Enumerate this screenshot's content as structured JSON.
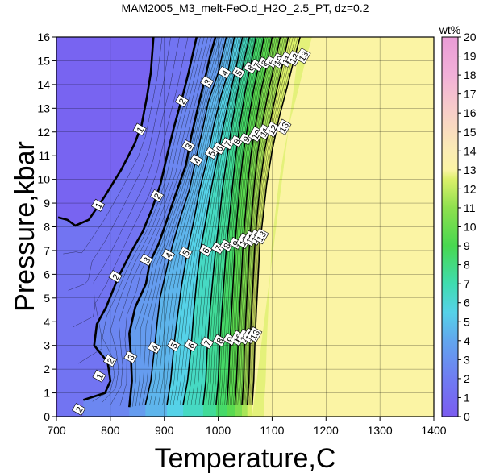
{
  "chart_data": {
    "type": "heatmap",
    "title": "MAM2005_M3_melt-FeO.d_H2O_2.5_PT, dz=0.2",
    "xlabel": "Temperature,C",
    "ylabel": "Pressure,kbar",
    "xlim": [
      700,
      1400
    ],
    "ylim": [
      0,
      16
    ],
    "x_ticks": [
      700,
      800,
      900,
      1000,
      1100,
      1200,
      1300,
      1400
    ],
    "y_ticks": [
      0,
      1,
      2,
      3,
      4,
      5,
      6,
      7,
      8,
      9,
      10,
      11,
      12,
      13,
      14,
      15,
      16
    ],
    "grid": true,
    "colorbar": {
      "label": "wt%",
      "min": 0,
      "max": 20,
      "ticks": [
        0,
        1,
        2,
        3,
        4,
        5,
        6,
        7,
        8,
        9,
        10,
        11,
        12,
        13,
        14,
        15,
        16,
        17,
        18,
        19,
        20
      ],
      "stops": [
        {
          "value": 0,
          "color": "#7b5cf0"
        },
        {
          "value": 2,
          "color": "#6f7cf2"
        },
        {
          "value": 4,
          "color": "#62a6ee"
        },
        {
          "value": 5.5,
          "color": "#55d2e8"
        },
        {
          "value": 7,
          "color": "#3fdcb0"
        },
        {
          "value": 9,
          "color": "#48d850"
        },
        {
          "value": 11,
          "color": "#8ee04e"
        },
        {
          "value": 12.5,
          "color": "#dbf06a"
        },
        {
          "value": 13,
          "color": "#fbf4a4"
        },
        {
          "value": 14,
          "color": "#fbecb4"
        },
        {
          "value": 16,
          "color": "#f8cfc8"
        },
        {
          "value": 18,
          "color": "#f2b0d8"
        },
        {
          "value": 20,
          "color": "#e99cd6"
        }
      ]
    },
    "background_field_color": "#fbf4a4",
    "isolines": [
      {
        "level": 1,
        "points": [
          [
            703,
            8.4
          ],
          [
            720,
            8.3
          ],
          [
            735,
            8.05
          ],
          [
            760,
            8.3
          ],
          [
            790,
            9.3
          ],
          [
            820,
            10.4
          ],
          [
            845,
            11.5
          ],
          [
            858,
            12.3
          ],
          [
            868,
            13.5
          ],
          [
            875,
            14.5
          ],
          [
            880,
            16
          ]
        ]
      },
      {
        "level": 2,
        "points": [
          [
            750,
            0.7
          ],
          [
            790,
            1.0
          ],
          [
            800,
            1.5
          ],
          [
            795,
            2.3
          ],
          [
            770,
            3.0
          ],
          [
            775,
            3.9
          ],
          [
            792,
            4.6
          ],
          [
            815,
            5.9
          ],
          [
            840,
            7.0
          ],
          [
            860,
            7.8
          ],
          [
            878,
            8.8
          ],
          [
            893,
            9.8
          ],
          [
            905,
            11
          ],
          [
            918,
            12.2
          ],
          [
            935,
            13.6
          ],
          [
            945,
            14.5
          ],
          [
            960,
            16
          ]
        ]
      },
      {
        "level": 3,
        "points": [
          [
            835,
            0.4
          ],
          [
            840,
            1.5
          ],
          [
            838,
            2.6
          ],
          [
            835,
            3.5
          ],
          [
            846,
            4.6
          ],
          [
            866,
            5.6
          ],
          [
            873,
            6.5
          ],
          [
            890,
            7.3
          ],
          [
            905,
            8.3
          ],
          [
            920,
            9.3
          ],
          [
            940,
            10.6
          ],
          [
            950,
            11.8
          ],
          [
            963,
            13.1
          ],
          [
            975,
            14.2
          ],
          [
            985,
            15.2
          ],
          [
            995,
            16
          ]
        ]
      },
      {
        "level": 4,
        "points": [
          [
            865,
            0.5
          ],
          [
            875,
            1.5
          ],
          [
            882,
            2.9
          ],
          [
            887,
            4.0
          ],
          [
            892,
            5.0
          ],
          [
            905,
            6.3
          ],
          [
            915,
            7.2
          ],
          [
            930,
            8.4
          ],
          [
            947,
            9.6
          ],
          [
            958,
            10.8
          ],
          [
            970,
            12
          ],
          [
            982,
            13.3
          ],
          [
            1000,
            14.5
          ],
          [
            1015,
            16
          ]
        ]
      },
      {
        "level": 5,
        "points": [
          [
            905,
            0.5
          ],
          [
            912,
            1.5
          ],
          [
            918,
            3.0
          ],
          [
            925,
            4.3
          ],
          [
            932,
            5.5
          ],
          [
            943,
            7.0
          ],
          [
            955,
            8.3
          ],
          [
            965,
            9.5
          ],
          [
            980,
            10.9
          ],
          [
            992,
            12.3
          ],
          [
            1005,
            13.5
          ],
          [
            1018,
            14.5
          ],
          [
            1030,
            16
          ]
        ]
      },
      {
        "level": 6,
        "points": [
          [
            935,
            0.5
          ],
          [
            943,
            1.5
          ],
          [
            950,
            3.0
          ],
          [
            955,
            4.5
          ],
          [
            960,
            5.7
          ],
          [
            967,
            7.0
          ],
          [
            978,
            8.4
          ],
          [
            987,
            9.6
          ],
          [
            998,
            10.9
          ],
          [
            1010,
            12.3
          ],
          [
            1022,
            13.6
          ],
          [
            1033,
            14.7
          ],
          [
            1045,
            16
          ]
        ]
      },
      {
        "level": 7,
        "points": [
          [
            972,
            0.5
          ],
          [
            977,
            1.5
          ],
          [
            980,
            3.0
          ],
          [
            985,
            4.5
          ],
          [
            990,
            5.8
          ],
          [
            995,
            7.0
          ],
          [
            1002,
            8.3
          ],
          [
            1008,
            9.6
          ],
          [
            1016,
            10.9
          ],
          [
            1026,
            12.4
          ],
          [
            1035,
            13.6
          ],
          [
            1045,
            14.7
          ],
          [
            1058,
            16
          ]
        ]
      },
      {
        "level": 8,
        "points": [
          [
            996,
            0.5
          ],
          [
            1000,
            1.5
          ],
          [
            1003,
            3.0
          ],
          [
            1007,
            4.5
          ],
          [
            1011,
            5.8
          ],
          [
            1015,
            7.1
          ],
          [
            1021,
            8.4
          ],
          [
            1027,
            9.8
          ],
          [
            1032,
            10.9
          ],
          [
            1040,
            12.3
          ],
          [
            1050,
            13.7
          ],
          [
            1060,
            14.8
          ],
          [
            1070,
            16
          ]
        ]
      },
      {
        "level": 9,
        "points": [
          [
            1016,
            0.5
          ],
          [
            1019,
            1.5
          ],
          [
            1022,
            3.1
          ],
          [
            1025,
            4.5
          ],
          [
            1028,
            5.8
          ],
          [
            1031,
            7.1
          ],
          [
            1035,
            8.4
          ],
          [
            1040,
            9.7
          ],
          [
            1046,
            11
          ],
          [
            1055,
            12.3
          ],
          [
            1065,
            13.7
          ],
          [
            1075,
            14.8
          ],
          [
            1085,
            16
          ]
        ]
      },
      {
        "level": 10,
        "points": [
          [
            1031,
            0.5
          ],
          [
            1034,
            1.5
          ],
          [
            1037,
            3.1
          ],
          [
            1040,
            4.5
          ],
          [
            1043,
            5.8
          ],
          [
            1046,
            7.2
          ],
          [
            1050,
            8.4
          ],
          [
            1055,
            9.8
          ],
          [
            1061,
            11.1
          ],
          [
            1070,
            12.4
          ],
          [
            1080,
            13.8
          ],
          [
            1091,
            14.9
          ],
          [
            1100,
            16
          ]
        ]
      },
      {
        "level": 11,
        "points": [
          [
            1044,
            0.5
          ],
          [
            1047,
            1.5
          ],
          [
            1049,
            3.1
          ],
          [
            1052,
            4.5
          ],
          [
            1055,
            5.8
          ],
          [
            1058,
            7.2
          ],
          [
            1062,
            8.4
          ],
          [
            1067,
            9.8
          ],
          [
            1073,
            11.1
          ],
          [
            1083,
            12.5
          ],
          [
            1094,
            13.8
          ],
          [
            1105,
            14.9
          ],
          [
            1115,
            16
          ]
        ]
      },
      {
        "level": 12,
        "points": [
          [
            1054,
            0.5
          ],
          [
            1057,
            1.5
          ],
          [
            1059,
            3.1
          ],
          [
            1062,
            4.5
          ],
          [
            1065,
            5.8
          ],
          [
            1068,
            7.2
          ],
          [
            1072,
            8.4
          ],
          [
            1078,
            9.8
          ],
          [
            1086,
            11.2
          ],
          [
            1098,
            12.6
          ],
          [
            1110,
            13.9
          ],
          [
            1120,
            14.9
          ],
          [
            1130,
            16
          ]
        ]
      },
      {
        "level": 13,
        "points": [
          [
            1063,
            0.5
          ],
          [
            1066,
            1.5
          ],
          [
            1068,
            3.0
          ],
          [
            1071,
            4.5
          ],
          [
            1074,
            5.8
          ],
          [
            1077,
            7.2
          ],
          [
            1083,
            8.4
          ],
          [
            1090,
            9.8
          ],
          [
            1100,
            11.2
          ],
          [
            1113,
            12.6
          ],
          [
            1128,
            13.9
          ],
          [
            1140,
            15
          ],
          [
            1152,
            16
          ]
        ]
      }
    ],
    "isoline_labels": [
      {
        "text": "1",
        "x": 780,
        "y": 1.7
      },
      {
        "text": "2",
        "x": 742,
        "y": 0.3
      },
      {
        "text": "1",
        "x": 778,
        "y": 8.9
      },
      {
        "text": "1",
        "x": 855,
        "y": 12.1
      },
      {
        "text": "2",
        "x": 800,
        "y": 2.35
      },
      {
        "text": "2",
        "x": 810,
        "y": 5.9
      },
      {
        "text": "2",
        "x": 887,
        "y": 9.3
      },
      {
        "text": "2",
        "x": 933,
        "y": 13.3
      },
      {
        "text": "3",
        "x": 838,
        "y": 2.5
      },
      {
        "text": "3",
        "x": 867,
        "y": 6.6
      },
      {
        "text": "3",
        "x": 945,
        "y": 11.4
      },
      {
        "text": "3",
        "x": 980,
        "y": 14.1
      },
      {
        "text": "4",
        "x": 882,
        "y": 2.9
      },
      {
        "text": "4",
        "x": 908,
        "y": 6.8
      },
      {
        "text": "4",
        "x": 960,
        "y": 10.8
      },
      {
        "text": "4",
        "x": 1012,
        "y": 14.5
      },
      {
        "text": "5",
        "x": 918,
        "y": 3.0
      },
      {
        "text": "5",
        "x": 940,
        "y": 6.9
      },
      {
        "text": "5",
        "x": 988,
        "y": 11.1
      },
      {
        "text": "5",
        "x": 1038,
        "y": 14.5
      },
      {
        "text": "6",
        "x": 950,
        "y": 3.0
      },
      {
        "text": "6",
        "x": 977,
        "y": 7.0
      },
      {
        "text": "6",
        "x": 1002,
        "y": 11.3
      },
      {
        "text": "6",
        "x": 1060,
        "y": 14.7
      },
      {
        "text": "7",
        "x": 980,
        "y": 3.1
      },
      {
        "text": "7",
        "x": 1000,
        "y": 7.1
      },
      {
        "text": "7",
        "x": 1018,
        "y": 11.5
      },
      {
        "text": "7",
        "x": 1072,
        "y": 14.8
      },
      {
        "text": "8",
        "x": 1003,
        "y": 3.2
      },
      {
        "text": "8",
        "x": 1016,
        "y": 7.2
      },
      {
        "text": "8",
        "x": 1035,
        "y": 11.6
      },
      {
        "text": "8",
        "x": 1086,
        "y": 14.9
      },
      {
        "text": "9",
        "x": 1022,
        "y": 3.25
      },
      {
        "text": "9",
        "x": 1033,
        "y": 7.3
      },
      {
        "text": "9",
        "x": 1052,
        "y": 11.7
      },
      {
        "text": "9",
        "x": 1099,
        "y": 14.95
      },
      {
        "text": "10",
        "x": 1037,
        "y": 3.3
      },
      {
        "text": "10",
        "x": 1048,
        "y": 7.4
      },
      {
        "text": "10",
        "x": 1071,
        "y": 11.9
      },
      {
        "text": "10",
        "x": 1112,
        "y": 15.0
      },
      {
        "text": "11",
        "x": 1049,
        "y": 3.35
      },
      {
        "text": "11",
        "x": 1060,
        "y": 7.5
      },
      {
        "text": "11",
        "x": 1086,
        "y": 12.0
      },
      {
        "text": "11",
        "x": 1127,
        "y": 15.05
      },
      {
        "text": "12",
        "x": 1059,
        "y": 3.4
      },
      {
        "text": "12",
        "x": 1070,
        "y": 7.55
      },
      {
        "text": "12",
        "x": 1101,
        "y": 12.1
      },
      {
        "text": "12",
        "x": 1141,
        "y": 15.1
      },
      {
        "text": "13",
        "x": 1068,
        "y": 3.45
      },
      {
        "text": "13",
        "x": 1080,
        "y": 7.6
      },
      {
        "text": "13",
        "x": 1122,
        "y": 12.2
      },
      {
        "text": "13",
        "x": 1158,
        "y": 15.2
      }
    ]
  }
}
